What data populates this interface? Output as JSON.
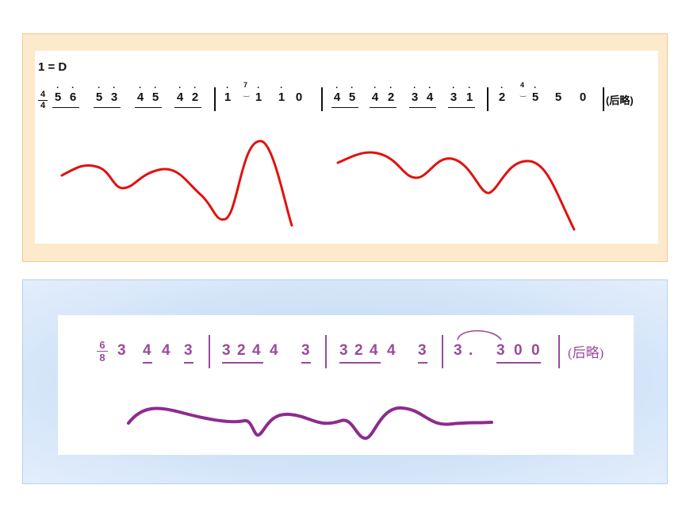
{
  "panel1": {
    "key": "1 = D",
    "time_signature": {
      "top": "4",
      "bottom": "4"
    },
    "grace1": "7",
    "grace2": "4",
    "tail": "(后略)",
    "curve_color": "#e0120f"
  },
  "panel2": {
    "time_signature": {
      "top": "6",
      "bottom": "8"
    },
    "tail": "(后略)",
    "text_color": "#9a4a9c",
    "curve_color": "#8d2b8f"
  }
}
